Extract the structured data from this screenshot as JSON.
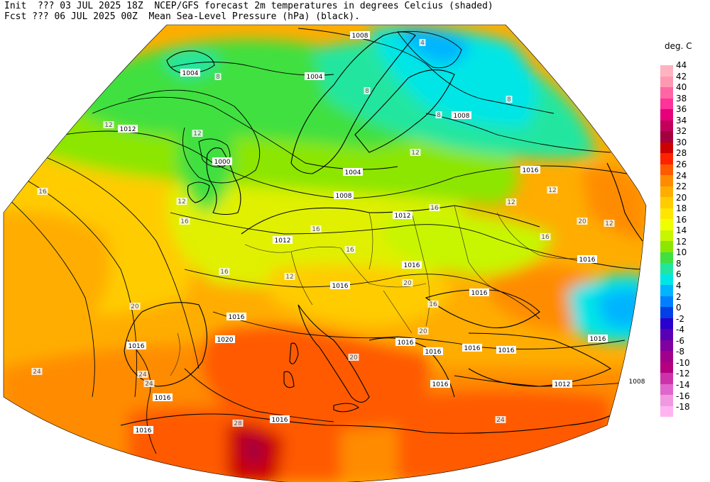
{
  "header": {
    "line1": "Init  ??? 03 JUL 2025 18Z  NCEP/GFS forecast 2m temperatures in degrees Celcius (shaded)",
    "line2": "Fcst ??? 06 JUL 2025 00Z  Mean Sea-Level Pressure (hPa) (black)."
  },
  "legend": {
    "title": "deg. C",
    "entries": [
      {
        "label": "44",
        "color": "#ffb3c1"
      },
      {
        "label": "42",
        "color": "#ff99b3"
      },
      {
        "label": "40",
        "color": "#ff66a3"
      },
      {
        "label": "38",
        "color": "#ff3399"
      },
      {
        "label": "36",
        "color": "#e6007a"
      },
      {
        "label": "34",
        "color": "#c2005c"
      },
      {
        "label": "32",
        "color": "#a3003d"
      },
      {
        "label": "30",
        "color": "#cc0000"
      },
      {
        "label": "28",
        "color": "#ff2200"
      },
      {
        "label": "26",
        "color": "#ff5a00"
      },
      {
        "label": "24",
        "color": "#ff8c00"
      },
      {
        "label": "22",
        "color": "#ffad00"
      },
      {
        "label": "20",
        "color": "#ffcc00"
      },
      {
        "label": "18",
        "color": "#ffe600"
      },
      {
        "label": "16",
        "color": "#f0ff00"
      },
      {
        "label": "14",
        "color": "#c8f500"
      },
      {
        "label": "12",
        "color": "#8ce600"
      },
      {
        "label": "10",
        "color": "#40e040"
      },
      {
        "label": "8",
        "color": "#20e6a0"
      },
      {
        "label": "6",
        "color": "#00e6e6"
      },
      {
        "label": "4",
        "color": "#00b4ff"
      },
      {
        "label": "2",
        "color": "#0080ff"
      },
      {
        "label": "0",
        "color": "#0040e6"
      },
      {
        "label": "-2",
        "color": "#2a00cc"
      },
      {
        "label": "-4",
        "color": "#5a00b4"
      },
      {
        "label": "-6",
        "color": "#8000a0"
      },
      {
        "label": "-8",
        "color": "#a0008c"
      },
      {
        "label": "-10",
        "color": "#b40080"
      },
      {
        "label": "-12",
        "color": "#cc33aa"
      },
      {
        "label": "-14",
        "color": "#e066cc"
      },
      {
        "label": "-16",
        "color": "#f099e0"
      },
      {
        "label": "-18",
        "color": "#ffb3f0"
      }
    ]
  },
  "map": {
    "isobar_labels": [
      "1008",
      "1004",
      "1004",
      "1012",
      "1000",
      "1004",
      "1008",
      "1008",
      "1016",
      "1012",
      "1012",
      "1016",
      "1016",
      "1016",
      "1016",
      "1016",
      "1020",
      "1016",
      "1016",
      "1016",
      "1016",
      "1016",
      "1016",
      "1012",
      "1008",
      "1016",
      "1016",
      "1016",
      "1016"
    ],
    "temp_labels": [
      "8",
      "8",
      "4",
      "8",
      "8",
      "12",
      "12",
      "12",
      "12",
      "12",
      "12",
      "12",
      "12",
      "16",
      "16",
      "16",
      "16",
      "16",
      "16",
      "16",
      "16",
      "20",
      "20",
      "20",
      "20",
      "20",
      "24",
      "24",
      "24",
      "24",
      "28"
    ]
  }
}
